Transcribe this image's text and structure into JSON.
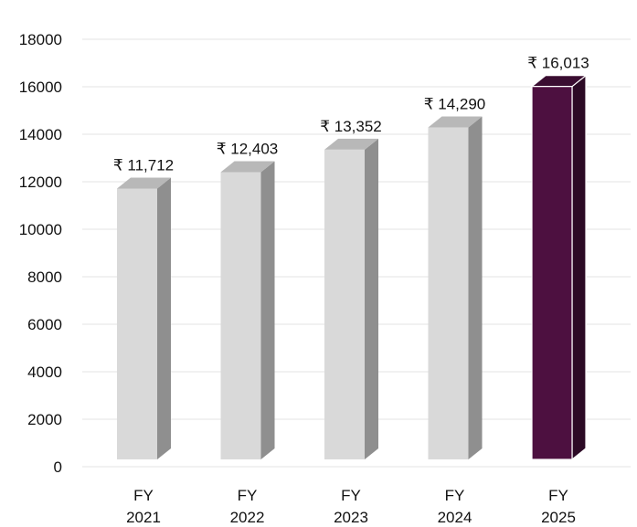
{
  "chart_data": {
    "type": "bar",
    "title": "",
    "xlabel": "",
    "ylabel": "",
    "categories": [
      "FY 2021",
      "FY 2022",
      "FY 2023",
      "FY 2024",
      "FY 2025"
    ],
    "category_lines": [
      [
        "FY",
        "2021"
      ],
      [
        "FY",
        "2022"
      ],
      [
        "FY",
        "2023"
      ],
      [
        "FY",
        "2024"
      ],
      [
        "FY",
        "2025"
      ]
    ],
    "values": [
      11712,
      12403,
      13352,
      14290,
      16013
    ],
    "data_labels": [
      "₹ 11,712",
      "₹ 12,403",
      "₹ 13,352",
      "₹ 14,290",
      "₹ 16,013"
    ],
    "ylim": [
      0,
      18000
    ],
    "yticks": [
      0,
      2000,
      4000,
      6000,
      8000,
      10000,
      12000,
      14000,
      16000,
      18000
    ],
    "grid": true,
    "legend": "none",
    "style": "3d-column",
    "colors": {
      "default_front": "#d9d9d9",
      "default_side": "#8f8f8f",
      "default_top": "#b8b8b8",
      "highlight_front": "#4d1040",
      "highlight_side": "#2c0a25",
      "highlight_top": "#3a0d31",
      "highlight_edge": "#ffffff",
      "grid": "#e3e3e3"
    },
    "highlight_index": 4
  }
}
